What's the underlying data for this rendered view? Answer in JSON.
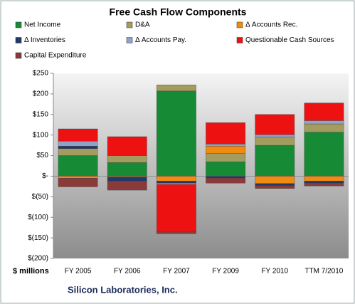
{
  "chart_data": {
    "type": "bar",
    "stacked": true,
    "title": "Free Cash Flow Components",
    "y_label": "$ millions",
    "footer": "Silicon Laboratories, Inc.",
    "categories": [
      "FY 2005",
      "FY 2006",
      "FY 2007",
      "FY 2009",
      "FY 2010",
      "TTM 7/2010"
    ],
    "series": [
      {
        "name": "Net Income",
        "color": "#178a35",
        "values": [
          50,
          33,
          207,
          35,
          75,
          107
        ]
      },
      {
        "name": "D&A",
        "color": "#a39c5e",
        "values": [
          17,
          17,
          15,
          20,
          20,
          20
        ]
      },
      {
        "name": "Δ Accounts Rec.",
        "color": "#f08a10",
        "values": [
          -5,
          -2,
          -12,
          18,
          -18,
          -12
        ]
      },
      {
        "name": "Δ Inventories",
        "color": "#1f3a66",
        "values": [
          6,
          -10,
          -5,
          -5,
          -5,
          -5
        ]
      },
      {
        "name": "Δ Accounts Pay.",
        "color": "#8fa2cc",
        "values": [
          12,
          0,
          -3,
          5,
          6,
          8
        ]
      },
      {
        "name": "Questionable Cash Sources",
        "color": "#ee1111",
        "values": [
          30,
          46,
          -115,
          52,
          49,
          43
        ]
      },
      {
        "name": "Capital Expenditure",
        "color": "#8b3a3a",
        "values": [
          -21,
          -22,
          -5,
          -12,
          -7,
          -7
        ]
      }
    ],
    "ylim": [
      -200,
      250
    ],
    "yticks": [
      {
        "value": 250,
        "label": "$250"
      },
      {
        "value": 200,
        "label": "$200"
      },
      {
        "value": 150,
        "label": "$150"
      },
      {
        "value": 100,
        "label": "$100"
      },
      {
        "value": 50,
        "label": "$50"
      },
      {
        "value": 0,
        "label": "$-"
      },
      {
        "value": -50,
        "label": "$(50)"
      },
      {
        "value": -100,
        "label": "$(100)"
      },
      {
        "value": -150,
        "label": "$(150)"
      },
      {
        "value": -200,
        "label": "$(200)"
      }
    ],
    "grid": false
  }
}
